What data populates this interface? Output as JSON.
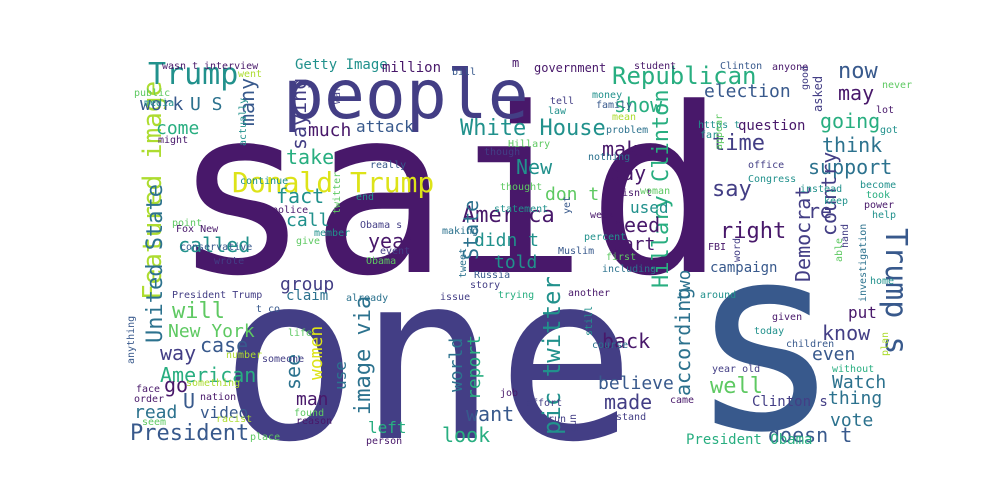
{
  "palette": {
    "dark_purple": "#48186a",
    "indigo": "#433e85",
    "blue": "#38598c",
    "steel": "#2c728e",
    "teal": "#21918c",
    "green": "#28ae80",
    "lime": "#5ec962",
    "yellow_green": "#addc30",
    "yellow": "#dde318"
  },
  "words": [
    {
      "text": "said",
      "color": "dark_purple"
    },
    {
      "text": "one",
      "color": "indigo"
    },
    {
      "text": "s",
      "color": "blue"
    },
    {
      "text": "people",
      "color": "indigo"
    },
    {
      "text": "Trump",
      "color": "teal"
    },
    {
      "text": "Donald Trump",
      "color": "yellow"
    },
    {
      "text": "White House",
      "color": "teal"
    },
    {
      "text": "Republican",
      "color": "green"
    },
    {
      "text": "Trump s",
      "color": "blue"
    },
    {
      "text": "Featured image",
      "color": "yellow_green"
    },
    {
      "text": "United State",
      "color": "steel"
    },
    {
      "text": "image via",
      "color": "steel"
    },
    {
      "text": "pic twitter",
      "color": "teal"
    },
    {
      "text": "Hillary Clinton",
      "color": "green"
    },
    {
      "text": "President",
      "color": "blue"
    },
    {
      "text": "American",
      "color": "green"
    },
    {
      "text": "America",
      "color": "dark_purple"
    },
    {
      "text": "election",
      "color": "blue"
    },
    {
      "text": "now",
      "color": "blue"
    },
    {
      "text": "may",
      "color": "dark_purple"
    },
    {
      "text": "going",
      "color": "green"
    },
    {
      "text": "think",
      "color": "steel"
    },
    {
      "text": "support",
      "color": "steel"
    },
    {
      "text": "country",
      "color": "indigo"
    },
    {
      "text": "Democrat",
      "color": "indigo"
    },
    {
      "text": "right",
      "color": "dark_purple"
    },
    {
      "text": "say",
      "color": "indigo"
    },
    {
      "text": "time",
      "color": "indigo"
    },
    {
      "text": "make",
      "color": "dark_purple"
    },
    {
      "text": "show",
      "color": "green"
    },
    {
      "text": "day",
      "color": "dark_purple"
    },
    {
      "text": "need",
      "color": "dark_purple"
    },
    {
      "text": "part",
      "color": "dark_purple"
    },
    {
      "text": "re",
      "color": "indigo"
    },
    {
      "text": "don t",
      "color": "lime"
    },
    {
      "text": "didn t",
      "color": "teal"
    },
    {
      "text": "told",
      "color": "teal"
    },
    {
      "text": "New",
      "color": "teal"
    },
    {
      "text": "State",
      "color": "steel"
    },
    {
      "text": "year",
      "color": "dark_purple"
    },
    {
      "text": "New York",
      "color": "lime"
    },
    {
      "text": "case",
      "color": "blue"
    },
    {
      "text": "way",
      "color": "indigo"
    },
    {
      "text": "will",
      "color": "lime"
    },
    {
      "text": "called",
      "color": "teal"
    },
    {
      "text": "fact",
      "color": "teal"
    },
    {
      "text": "take",
      "color": "green"
    },
    {
      "text": "call",
      "color": "teal"
    },
    {
      "text": "group",
      "color": "indigo"
    },
    {
      "text": "saying",
      "color": "indigo"
    },
    {
      "text": "many",
      "color": "blue"
    },
    {
      "text": "much",
      "color": "dark_purple"
    },
    {
      "text": "attack",
      "color": "blue"
    },
    {
      "text": "U S",
      "color": "steel"
    },
    {
      "text": "work",
      "color": "blue"
    },
    {
      "text": "come",
      "color": "green"
    },
    {
      "text": "know",
      "color": "indigo"
    },
    {
      "text": "even",
      "color": "blue"
    },
    {
      "text": "Watch",
      "color": "steel"
    },
    {
      "text": "thing",
      "color": "steel"
    },
    {
      "text": "vote",
      "color": "steel"
    },
    {
      "text": "doesn t",
      "color": "blue"
    },
    {
      "text": "according",
      "color": "steel"
    },
    {
      "text": "well",
      "color": "lime"
    },
    {
      "text": "back",
      "color": "dark_purple"
    },
    {
      "text": "believe",
      "color": "blue"
    },
    {
      "text": "made",
      "color": "indigo"
    },
    {
      "text": "want",
      "color": "blue"
    },
    {
      "text": "look",
      "color": "green"
    },
    {
      "text": "left",
      "color": "green"
    },
    {
      "text": "report",
      "color": "green"
    },
    {
      "text": "world",
      "color": "steel"
    },
    {
      "text": "women",
      "color": "yellow"
    },
    {
      "text": "see",
      "color": "steel"
    },
    {
      "text": "man",
      "color": "dark_purple"
    },
    {
      "text": "use",
      "color": "steel"
    },
    {
      "text": "go",
      "color": "dark_purple"
    },
    {
      "text": "read",
      "color": "steel"
    },
    {
      "text": "U",
      "color": "blue"
    },
    {
      "text": "video",
      "color": "blue"
    },
    {
      "text": "two",
      "color": "steel"
    },
    {
      "text": "used",
      "color": "teal"
    },
    {
      "text": "campaign",
      "color": "blue"
    },
    {
      "text": "President Obama",
      "color": "green"
    },
    {
      "text": "Clinton s",
      "color": "indigo"
    },
    {
      "text": "Getty Image",
      "color": "teal"
    },
    {
      "text": "million",
      "color": "dark_purple"
    },
    {
      "text": "government",
      "color": "dark_purple"
    },
    {
      "text": "question",
      "color": "dark_purple"
    },
    {
      "text": "claim",
      "color": "steel"
    },
    {
      "text": "interview",
      "color": "dark_purple"
    },
    {
      "text": "wasn t",
      "color": "dark_purple"
    },
    {
      "text": "student",
      "color": "dark_purple"
    },
    {
      "text": "Clinton",
      "color": "blue"
    },
    {
      "text": "anyone",
      "color": "dark_purple"
    },
    {
      "text": "m",
      "color": "dark_purple"
    },
    {
      "text": "public",
      "color": "lime"
    },
    {
      "text": "media",
      "color": "teal"
    },
    {
      "text": "went",
      "color": "yellow_green"
    },
    {
      "text": "actually",
      "color": "teal"
    },
    {
      "text": "might",
      "color": "dark_purple"
    },
    {
      "text": "war",
      "color": "indigo"
    },
    {
      "text": "bill",
      "color": "blue"
    },
    {
      "text": "money",
      "color": "teal"
    },
    {
      "text": "family",
      "color": "blue"
    },
    {
      "text": "mean",
      "color": "yellow_green"
    },
    {
      "text": "tell",
      "color": "indigo"
    },
    {
      "text": "law",
      "color": "teal"
    },
    {
      "text": "problem",
      "color": "steel"
    },
    {
      "text": "https t",
      "color": "teal"
    },
    {
      "text": "far",
      "color": "teal"
    },
    {
      "text": "appear",
      "color": "lime"
    },
    {
      "text": "good",
      "color": "indigo"
    },
    {
      "text": "asked",
      "color": "indigo"
    },
    {
      "text": "never",
      "color": "lime"
    },
    {
      "text": "lot",
      "color": "dark_purple"
    },
    {
      "text": "got",
      "color": "teal"
    },
    {
      "text": "Hillary",
      "color": "lime"
    },
    {
      "text": "though",
      "color": "indigo"
    },
    {
      "text": "nothing",
      "color": "steel"
    },
    {
      "text": "office",
      "color": "indigo"
    },
    {
      "text": "Congress",
      "color": "teal"
    },
    {
      "text": "instead",
      "color": "teal"
    },
    {
      "text": "become",
      "color": "teal"
    },
    {
      "text": "took",
      "color": "green"
    },
    {
      "text": "power",
      "color": "dark_purple"
    },
    {
      "text": "help",
      "color": "teal"
    },
    {
      "text": "keep",
      "color": "teal"
    },
    {
      "text": "really",
      "color": "blue"
    },
    {
      "text": "thought",
      "color": "lime"
    },
    {
      "text": "continue",
      "color": "teal"
    },
    {
      "text": "twitter",
      "color": "lime"
    },
    {
      "text": "end",
      "color": "teal"
    },
    {
      "text": "statement",
      "color": "teal"
    },
    {
      "text": "isn t",
      "color": "dark_purple"
    },
    {
      "text": "yet",
      "color": "blue"
    },
    {
      "text": "woman",
      "color": "lime"
    },
    {
      "text": "week",
      "color": "dark_purple"
    },
    {
      "text": "point",
      "color": "lime"
    },
    {
      "text": "police",
      "color": "dark_purple"
    },
    {
      "text": "Fox New",
      "color": "dark_purple"
    },
    {
      "text": "member",
      "color": "teal"
    },
    {
      "text": "give",
      "color": "lime"
    },
    {
      "text": "Obama s",
      "color": "indigo"
    },
    {
      "text": "Obama",
      "color": "lime"
    },
    {
      "text": "conservative",
      "color": "blue"
    },
    {
      "text": "event",
      "color": "indigo"
    },
    {
      "text": "wrote",
      "color": "indigo"
    },
    {
      "text": "tweet",
      "color": "steel"
    },
    {
      "text": "first",
      "color": "lime"
    },
    {
      "text": "percent",
      "color": "teal"
    },
    {
      "text": "including",
      "color": "steel"
    },
    {
      "text": "making",
      "color": "steel"
    },
    {
      "text": "Russia",
      "color": "blue"
    },
    {
      "text": "story",
      "color": "indigo"
    },
    {
      "text": "issue",
      "color": "indigo"
    },
    {
      "text": "trying",
      "color": "green"
    },
    {
      "text": "Muslim",
      "color": "blue"
    },
    {
      "text": "another",
      "color": "dark_purple"
    },
    {
      "text": "around",
      "color": "teal"
    },
    {
      "text": "already",
      "color": "steel"
    },
    {
      "text": "President Trump",
      "color": "indigo"
    },
    {
      "text": "t co",
      "color": "blue"
    },
    {
      "text": "life",
      "color": "lime"
    },
    {
      "text": "FBI",
      "color": "dark_purple"
    },
    {
      "text": "word",
      "color": "indigo"
    },
    {
      "text": "investigation",
      "color": "steel"
    },
    {
      "text": "hand",
      "color": "indigo"
    },
    {
      "text": "home",
      "color": "teal"
    },
    {
      "text": "able",
      "color": "lime"
    },
    {
      "text": "put",
      "color": "dark_purple"
    },
    {
      "text": "given",
      "color": "dark_purple"
    },
    {
      "text": "today",
      "color": "teal"
    },
    {
      "text": "children",
      "color": "blue"
    },
    {
      "text": "plan",
      "color": "yellow_green"
    },
    {
      "text": "without",
      "color": "green"
    },
    {
      "text": "still",
      "color": "teal"
    },
    {
      "text": "course",
      "color": "steel"
    },
    {
      "text": "anything",
      "color": "blue"
    },
    {
      "text": "number",
      "color": "yellow_green"
    },
    {
      "text": "someone",
      "color": "indigo"
    },
    {
      "text": "something",
      "color": "yellow_green"
    },
    {
      "text": "face",
      "color": "dark_purple"
    },
    {
      "text": "nation",
      "color": "dark_purple"
    },
    {
      "text": "order",
      "color": "dark_purple"
    },
    {
      "text": "seem",
      "color": "lime"
    },
    {
      "text": "racist",
      "color": "yellow_green"
    },
    {
      "text": "found",
      "color": "lime"
    },
    {
      "text": "reason",
      "color": "dark_purple"
    },
    {
      "text": "place",
      "color": "lime"
    },
    {
      "text": "person",
      "color": "dark_purple"
    },
    {
      "text": "effort",
      "color": "indigo"
    },
    {
      "text": "job",
      "color": "dark_purple"
    },
    {
      "text": "run",
      "color": "indigo"
    },
    {
      "text": "gun",
      "color": "indigo"
    },
    {
      "text": "stand",
      "color": "indigo"
    },
    {
      "text": "came",
      "color": "dark_purple"
    },
    {
      "text": "year old",
      "color": "indigo"
    }
  ]
}
